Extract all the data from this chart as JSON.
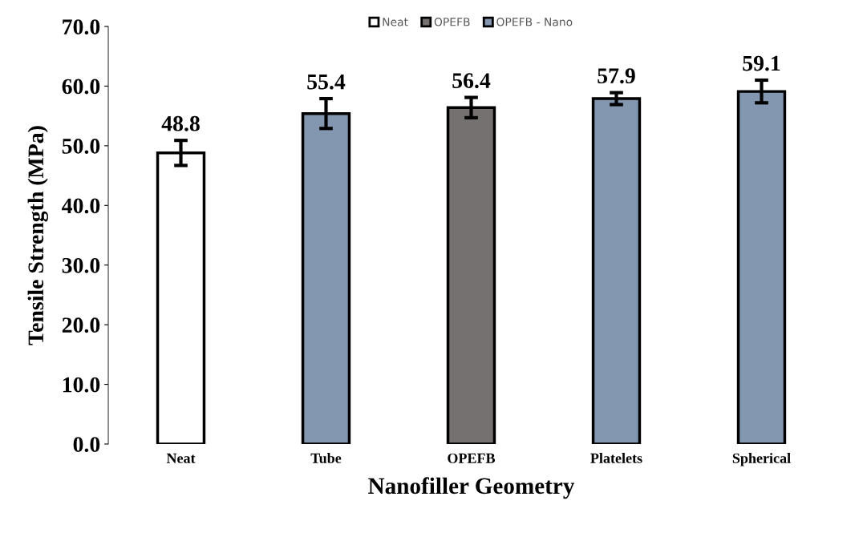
{
  "chart_data": {
    "type": "bar",
    "xlabel": "Nanofiller Geometry",
    "ylabel": "Tensile Strength (MPa)",
    "categories": [
      "Neat",
      "Tube",
      "OPEFB",
      "Platelets",
      "Spherical"
    ],
    "series": [
      {
        "name": "Neat",
        "color": "#ffffff",
        "values": [
          48.8,
          null,
          null,
          null,
          null
        ],
        "errors": [
          2.1,
          null,
          null,
          null,
          null
        ]
      },
      {
        "name": "OPEFB",
        "color": "#767171",
        "values": [
          null,
          null,
          56.4,
          null,
          null
        ],
        "errors": [
          null,
          null,
          1.7,
          null,
          null
        ]
      },
      {
        "name": "OPEFB - Nano",
        "color": "#8497b0",
        "values": [
          null,
          55.4,
          null,
          57.9,
          59.1
        ],
        "errors": [
          null,
          2.5,
          null,
          1.0,
          1.9
        ]
      }
    ],
    "ylim": [
      0,
      70
    ],
    "yticks": [
      {
        "value": 0,
        "label": "0.0"
      },
      {
        "value": 10,
        "label": "10.0"
      },
      {
        "value": 20,
        "label": "20.0"
      },
      {
        "value": 30,
        "label": "30.0"
      },
      {
        "value": 40,
        "label": "40.0"
      },
      {
        "value": 50,
        "label": "50.0"
      },
      {
        "value": 60,
        "label": "60.0"
      },
      {
        "value": 70,
        "label": "70.0"
      }
    ],
    "data_labels": true,
    "legend": "top",
    "grid": false
  }
}
